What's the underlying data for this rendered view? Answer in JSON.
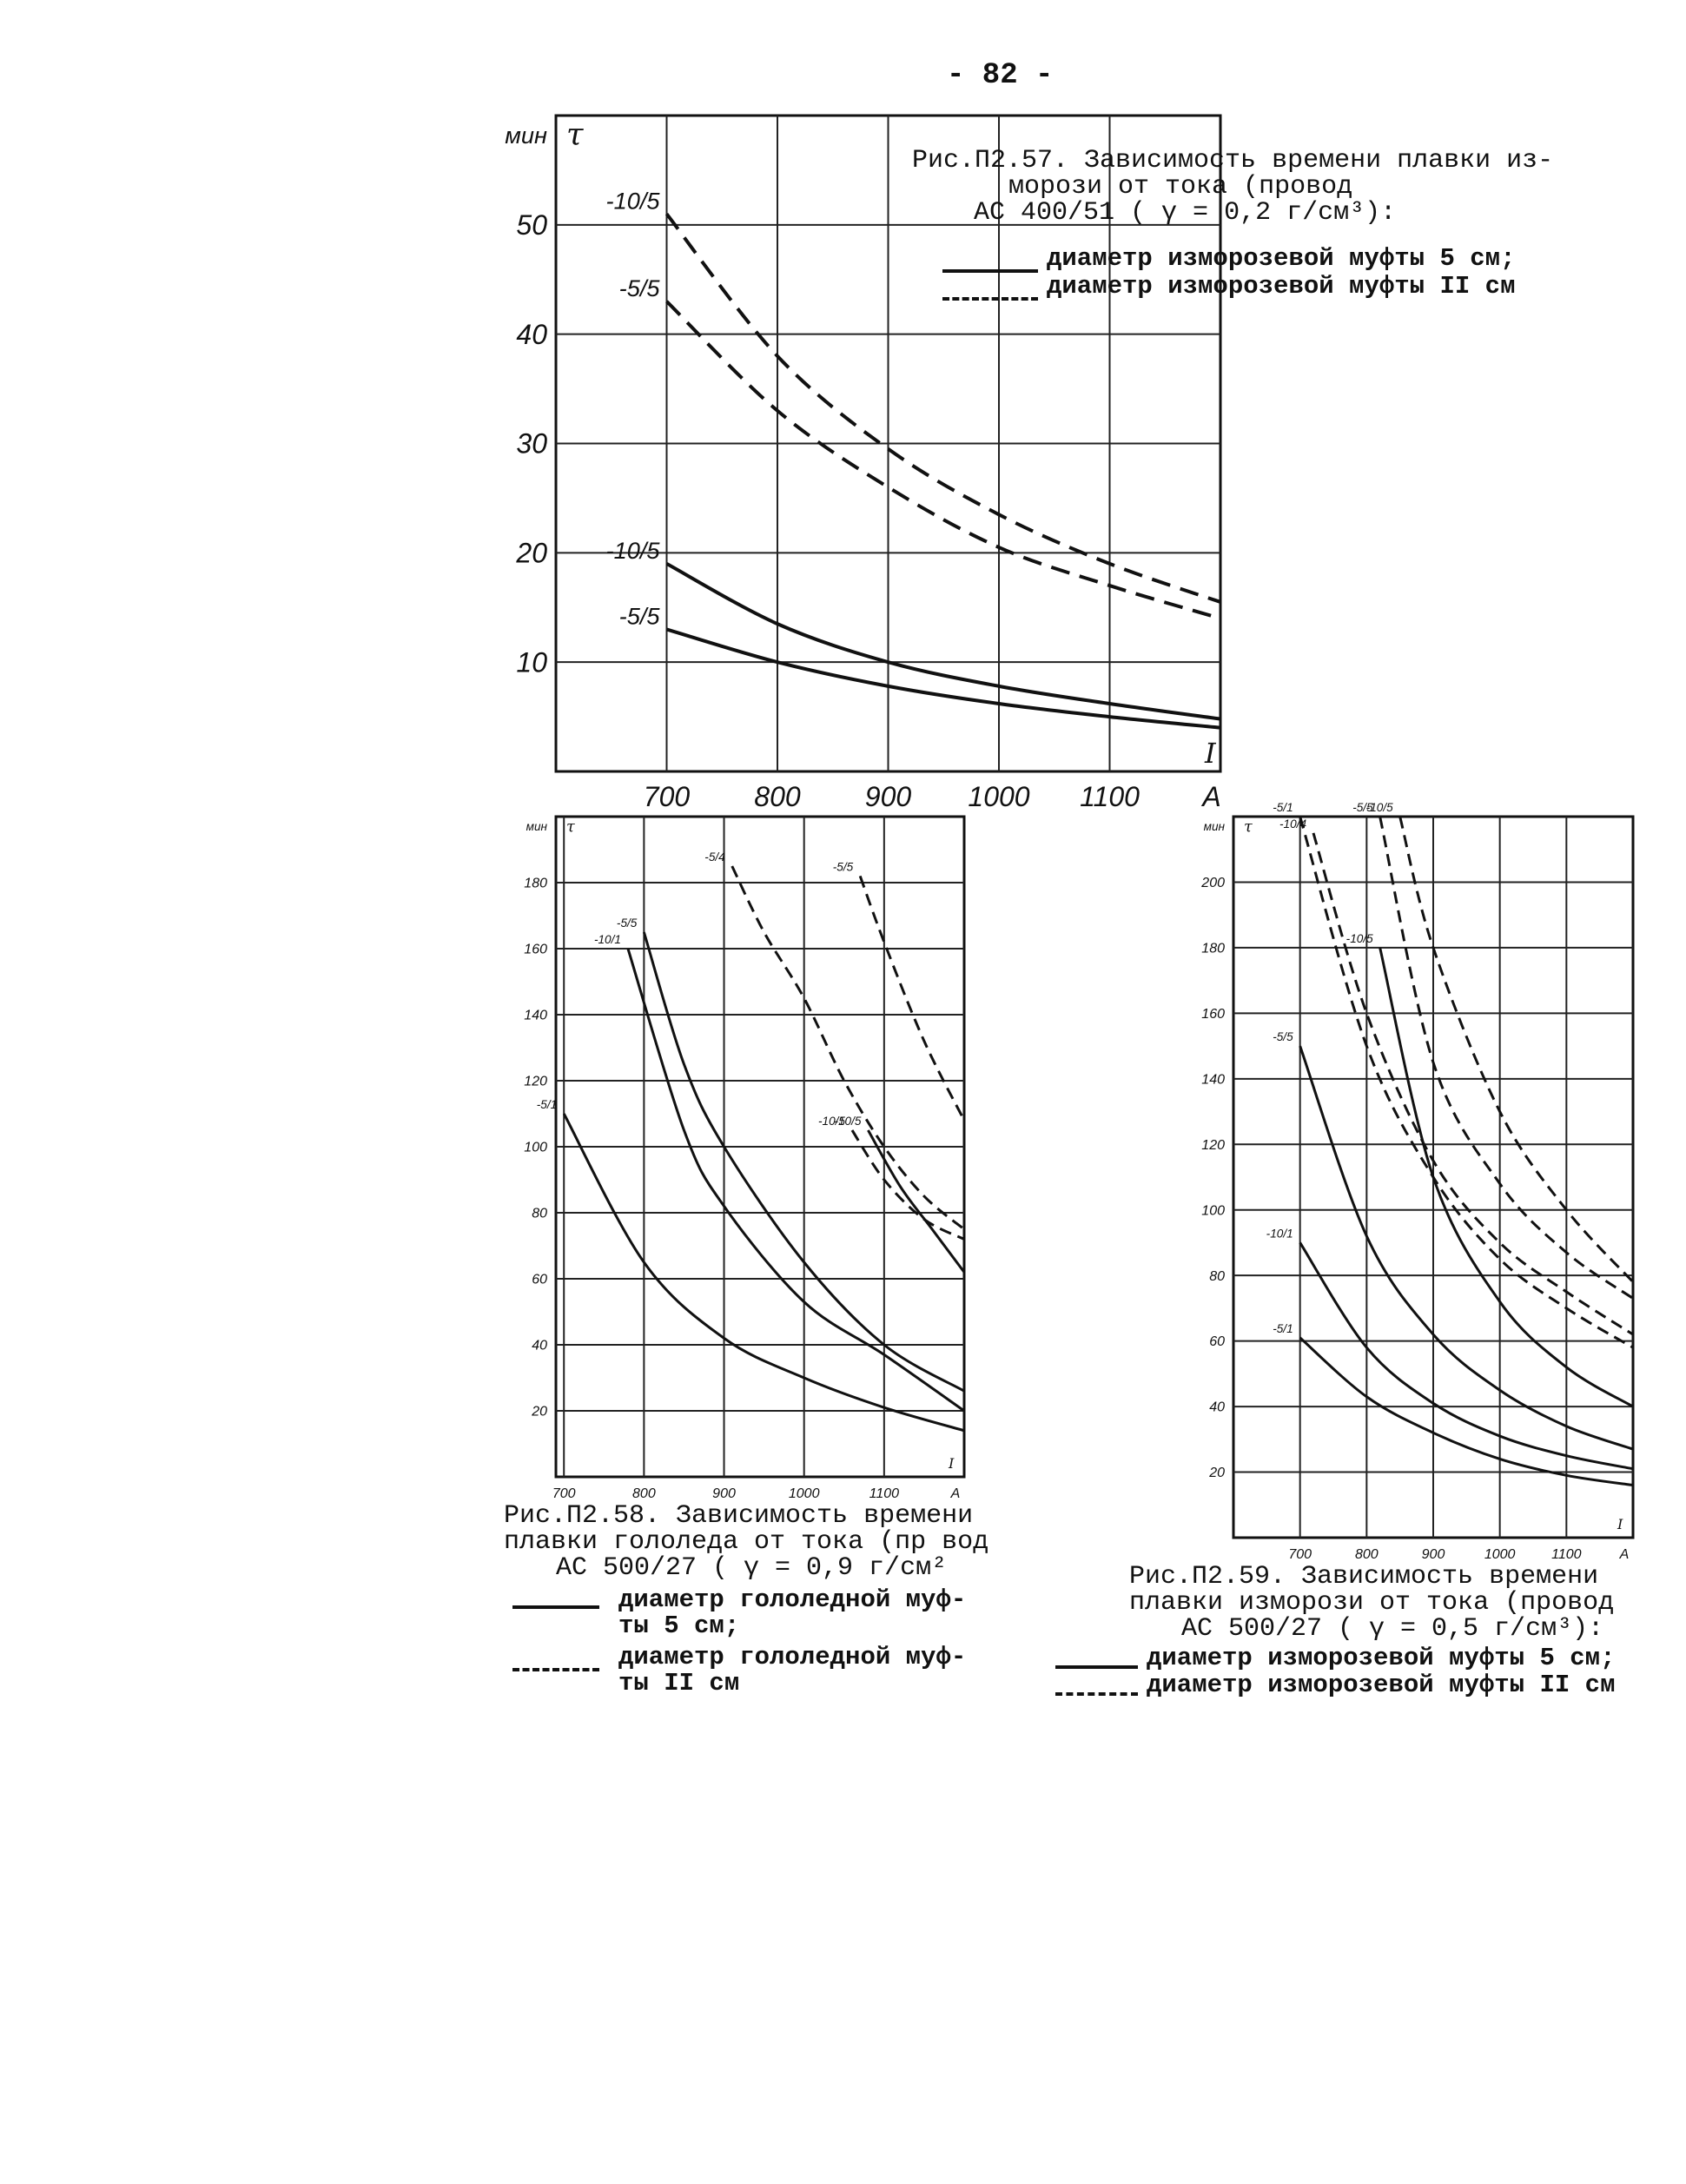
{
  "page_number": "- 82 -",
  "figures": [
    {
      "id": "fig57",
      "caption_lines": [
        "Рис.П2.57. Зависимость времени плавки из-",
        "морози от тока (провод",
        "АС 400/51 ( γ = 0,2 г/см³):"
      ],
      "legend": [
        {
          "style": "solid",
          "text": "диаметр изморозевой муфты 5 см;"
        },
        {
          "style": "dashed",
          "text": "диаметр изморозевой муфты II см"
        }
      ]
    },
    {
      "id": "fig58",
      "caption_lines": [
        "Рис.П2.58. Зависимость времени",
        "плавки гололеда от тока (пр вод",
        "АС 500/27 ( γ = 0,9 г/см²"
      ],
      "legend": [
        {
          "style": "solid",
          "text": [
            "диаметр гололедной муф-",
            "ты 5 см;"
          ]
        },
        {
          "style": "dashed",
          "text": [
            "диаметр гололедной муф-",
            "ты II см"
          ]
        }
      ]
    },
    {
      "id": "fig59",
      "caption_lines": [
        "Рис.П2.59. Зависимость времени",
        "плавки изморози от тока (провод",
        "АС 500/27 ( γ = 0,5 г/см³):"
      ],
      "legend": [
        {
          "style": "solid",
          "text": "диаметр изморозевой муфты 5 см;"
        },
        {
          "style": "dashed",
          "text": "диаметр изморозевой муфты II см"
        }
      ]
    }
  ],
  "chart_data": [
    {
      "id": "fig57",
      "type": "line",
      "y_unit": "мин",
      "y_symbol": "τ",
      "x_symbol": "I",
      "x_unit": "A",
      "x_ticks": [
        "700",
        "800",
        "900",
        "1000",
        "1100"
      ],
      "y_ticks": [
        "10",
        "20",
        "30",
        "40",
        "50"
      ],
      "xlim": [
        600,
        1200
      ],
      "ylim": [
        0,
        60
      ],
      "grid": true,
      "series": [
        {
          "name": "-10/5",
          "style": "dashed",
          "x": [
            700,
            800,
            900,
            1000,
            1100,
            1200
          ],
          "y": [
            51,
            38,
            29.5,
            23.5,
            19,
            15.5
          ]
        },
        {
          "name": "-5/5",
          "style": "dashed",
          "x": [
            700,
            800,
            900,
            1000,
            1100,
            1200
          ],
          "y": [
            43,
            33,
            26,
            20.5,
            17,
            14
          ]
        },
        {
          "name": "-10/5",
          "style": "solid",
          "x": [
            700,
            800,
            900,
            1000,
            1100,
            1200
          ],
          "y": [
            19,
            13.5,
            10,
            7.8,
            6.2,
            4.8
          ]
        },
        {
          "name": "-5/5",
          "style": "solid",
          "x": [
            700,
            800,
            900,
            1000,
            1100,
            1200
          ],
          "y": [
            13,
            10,
            7.8,
            6.2,
            5,
            4
          ]
        }
      ]
    },
    {
      "id": "fig58",
      "type": "line",
      "y_unit": "мин",
      "y_symbol": "τ",
      "x_symbol": "I",
      "x_unit": "A",
      "x_ticks": [
        "700",
        "800",
        "900",
        "1000",
        "1100"
      ],
      "y_ticks": [
        "20",
        "40",
        "60",
        "80",
        "100",
        "120",
        "140",
        "160",
        "180"
      ],
      "xlim": [
        690,
        1200
      ],
      "ylim": [
        0,
        200
      ],
      "grid": true,
      "series": [
        {
          "name": "-5/1",
          "style": "solid",
          "x": [
            700,
            800,
            900,
            1000,
            1100,
            1200
          ],
          "y": [
            110,
            65,
            42,
            30,
            21,
            14
          ]
        },
        {
          "name": "-10/1",
          "style": "solid",
          "x": [
            780,
            850,
            900,
            1000,
            1100,
            1200
          ],
          "y": [
            160,
            105,
            82,
            53,
            37,
            20
          ]
        },
        {
          "name": "-5/5",
          "style": "solid",
          "x": [
            800,
            850,
            900,
            1000,
            1100,
            1200
          ],
          "y": [
            165,
            125,
            100,
            65,
            40,
            26
          ]
        },
        {
          "name": "-10/5",
          "style": "solid",
          "x": [
            1080,
            1120,
            1160,
            1200
          ],
          "y": [
            105,
            88,
            75,
            62
          ]
        },
        {
          "name": "-5/4",
          "style": "dashed",
          "x": [
            910,
            950,
            1000,
            1050,
            1100,
            1150,
            1200
          ],
          "y": [
            185,
            165,
            145,
            120,
            100,
            85,
            75
          ]
        },
        {
          "name": "-5/5",
          "style": "dashed",
          "x": [
            1070,
            1100,
            1150,
            1200
          ],
          "y": [
            182,
            162,
            132,
            108
          ]
        },
        {
          "name": "-10/5",
          "style": "dashed",
          "x": [
            1060,
            1100,
            1150,
            1200
          ],
          "y": [
            105,
            90,
            78,
            72
          ]
        }
      ]
    },
    {
      "id": "fig59",
      "type": "line",
      "y_unit": "мин",
      "y_symbol": "τ",
      "x_symbol": "I",
      "x_unit": "A",
      "x_ticks": [
        "700",
        "800",
        "900",
        "1000",
        "1100"
      ],
      "y_ticks": [
        "20",
        "40",
        "60",
        "80",
        "100",
        "120",
        "140",
        "160",
        "180",
        "200"
      ],
      "xlim": [
        600,
        1200
      ],
      "ylim": [
        0,
        220
      ],
      "grid": true,
      "series": [
        {
          "name": "-5/1",
          "style": "solid",
          "x": [
            700,
            800,
            900,
            1000,
            1100,
            1200
          ],
          "y": [
            61,
            43,
            32,
            24,
            19,
            16
          ]
        },
        {
          "name": "-10/1",
          "style": "solid",
          "x": [
            700,
            800,
            900,
            1000,
            1100,
            1200
          ],
          "y": [
            90,
            58,
            41,
            31,
            25,
            21
          ]
        },
        {
          "name": "-5/5",
          "style": "solid",
          "x": [
            700,
            800,
            900,
            1000,
            1100,
            1200
          ],
          "y": [
            150,
            92,
            62,
            45,
            34,
            27
          ]
        },
        {
          "name": "-10/5",
          "style": "solid",
          "x": [
            820,
            900,
            1000,
            1100,
            1200
          ],
          "y": [
            180,
            110,
            72,
            52,
            40
          ]
        },
        {
          "name": "-5/1",
          "style": "dashed",
          "x": [
            700,
            800,
            900,
            1000,
            1100,
            1200
          ],
          "y": [
            220,
            150,
            110,
            85,
            70,
            58
          ]
        },
        {
          "name": "-10/4",
          "style": "dashed",
          "x": [
            720,
            800,
            900,
            1000,
            1100,
            1200
          ],
          "y": [
            215,
            160,
            115,
            90,
            75,
            62
          ]
        },
        {
          "name": "-5/5",
          "style": "dashed",
          "x": [
            820,
            900,
            1000,
            1100,
            1200
          ],
          "y": [
            220,
            145,
            108,
            87,
            73
          ]
        },
        {
          "name": "-10/5",
          "style": "dashed",
          "x": [
            850,
            900,
            1000,
            1100,
            1200
          ],
          "y": [
            220,
            180,
            130,
            100,
            78
          ]
        }
      ]
    }
  ]
}
